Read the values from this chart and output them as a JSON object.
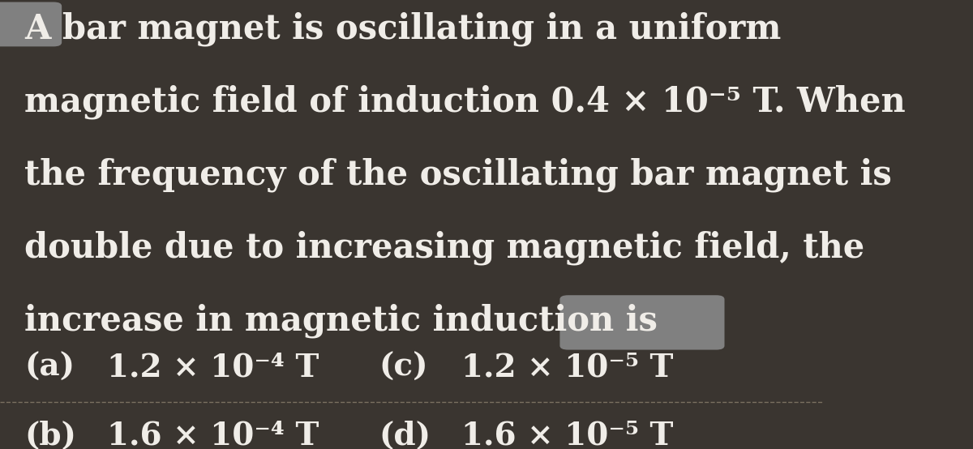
{
  "background_color": "#3a3530",
  "text_color": "#f0ede8",
  "fig_width": 12.0,
  "fig_height": 5.54,
  "line1": "A bar magnet is oscillating in a uniform",
  "line2": "magnetic field of induction 0.4 × 10⁻⁵ T. When",
  "line3": "the frequency of the oscillating bar magnet is",
  "line4": "double due to increasing magnetic field, the",
  "line5": "increase in magnetic induction is",
  "opt_a_label": "(a)",
  "opt_a_value": "1.2 × 10⁻⁴ T",
  "opt_c_label": "(c)",
  "opt_c_value": "1.2 × 10⁻⁵ T",
  "opt_b_label": "(b)",
  "opt_b_value": "1.6 × 10⁻⁴ T",
  "opt_d_label": "(d)",
  "opt_d_value": "1.6 × 10⁻⁵ T",
  "main_fontsize": 30,
  "option_fontsize": 28,
  "dashed_line_color": "#7a7060",
  "gray_blob_color": "#808080"
}
